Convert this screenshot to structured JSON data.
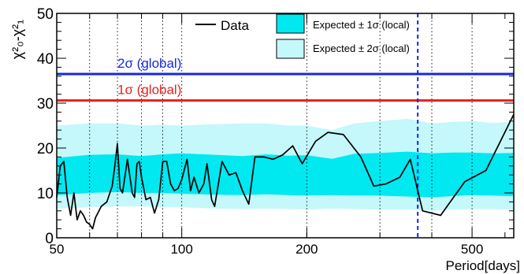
{
  "chart_data": {
    "type": "line",
    "title": "",
    "xlabel": "Period[days]",
    "ylabel": "χ²₀-χ²₁",
    "x_scale": "log",
    "xlim": [
      50,
      630
    ],
    "ylim": [
      0,
      50
    ],
    "x_ticks": [
      50,
      100,
      200,
      500
    ],
    "y_ticks": [
      0,
      10,
      20,
      30,
      40,
      50
    ],
    "x_tick_labels": [
      "50",
      "100",
      "200",
      "500"
    ],
    "y_tick_labels": [
      "0",
      "10",
      "20",
      "30",
      "40",
      "50"
    ],
    "grid": "vertical dotted lines at 60, 70, 80, 90, 100, 200, 300, 400, 500",
    "grid_x": [
      60,
      70,
      80,
      90,
      100,
      200,
      300,
      400,
      500
    ],
    "legend": {
      "placement": "top",
      "entries": [
        {
          "label": "Data",
          "symbol": "line",
          "color": "#000000"
        },
        {
          "label": "Expected ± 1σ (local)",
          "symbol": "box",
          "color": "#00e8f0"
        },
        {
          "label": "Expected ± 2σ (local)",
          "symbol": "box",
          "color": "#c4f8fa"
        }
      ]
    },
    "reference_lines": [
      {
        "label": "2σ (global)",
        "y": 36.5,
        "color": "#1428e0"
      },
      {
        "label": "1σ (global)",
        "y": 30.6,
        "color": "#e8201c"
      }
    ],
    "vertical_marker": {
      "x": 370,
      "color": "#1428e0",
      "style": "dashed"
    },
    "band_2sigma": {
      "color": "#c4f8fa",
      "x": [
        50,
        60,
        70,
        80,
        90,
        100,
        120,
        140,
        160,
        180,
        200,
        230,
        260,
        300,
        350,
        400,
        450,
        500,
        560,
        630
      ],
      "lower": [
        6.5,
        6.8,
        7.0,
        7.0,
        6.8,
        6.8,
        6.5,
        6.4,
        6.5,
        6.4,
        6.3,
        6.5,
        6.4,
        6.3,
        6.3,
        6.0,
        6.3,
        6.4,
        6.4,
        6.3
      ],
      "upper": [
        25.0,
        25.5,
        25.5,
        25.0,
        25.2,
        25.0,
        25.3,
        25.5,
        25.5,
        25.0,
        25.0,
        24.0,
        25.5,
        26.0,
        26.5,
        25.5,
        25.8,
        26.0,
        25.6,
        25.8
      ]
    },
    "band_1sigma": {
      "color": "#00e8f0",
      "x": [
        50,
        60,
        70,
        80,
        90,
        100,
        120,
        140,
        160,
        180,
        200,
        230,
        260,
        300,
        350,
        400,
        450,
        500,
        560,
        630
      ],
      "lower": [
        9.5,
        10.0,
        10.2,
        10.0,
        10.0,
        9.8,
        9.6,
        9.5,
        9.7,
        9.5,
        9.4,
        9.5,
        9.4,
        9.4,
        9.2,
        9.0,
        9.3,
        9.5,
        9.4,
        9.3
      ],
      "upper": [
        17.8,
        18.5,
        18.6,
        18.2,
        18.6,
        18.8,
        18.5,
        18.2,
        18.6,
        18.3,
        18.4,
        17.6,
        18.7,
        18.9,
        19.2,
        18.8,
        19.0,
        19.0,
        18.8,
        18.9
      ]
    },
    "series": [
      {
        "name": "Data",
        "color": "#000000",
        "x": [
          50,
          51,
          52,
          53,
          54,
          55,
          56,
          57,
          58,
          59,
          60,
          61,
          62,
          64,
          66,
          68,
          69,
          70,
          71,
          72,
          74,
          76,
          77,
          78,
          79,
          80,
          82,
          84,
          86,
          88,
          90,
          92,
          94,
          96,
          98,
          100,
          103,
          105,
          107,
          110,
          113,
          115,
          118,
          120,
          125,
          130,
          135,
          140,
          145,
          150,
          158,
          166,
          175,
          185,
          195,
          210,
          225,
          245,
          270,
          290,
          310,
          335,
          355,
          380,
          420,
          480,
          540,
          630
        ],
        "y": [
          9,
          16,
          17,
          9,
          5,
          10,
          4,
          6,
          5,
          3.5,
          3,
          2,
          4.5,
          7,
          8,
          11.5,
          16,
          21,
          11,
          10,
          17.5,
          10,
          9,
          16.5,
          17,
          13.5,
          8.5,
          9,
          5.5,
          8.5,
          17,
          17,
          12,
          10.5,
          11,
          13,
          17.5,
          10.5,
          13.5,
          10,
          12,
          16.5,
          8.5,
          7,
          17,
          14,
          14.5,
          10.5,
          7.5,
          18,
          18,
          17.5,
          18.5,
          20.5,
          16.5,
          21.5,
          23.5,
          23,
          18,
          11.5,
          12,
          13.5,
          17.5,
          6,
          5,
          12.5,
          15,
          27.5
        ]
      }
    ]
  }
}
